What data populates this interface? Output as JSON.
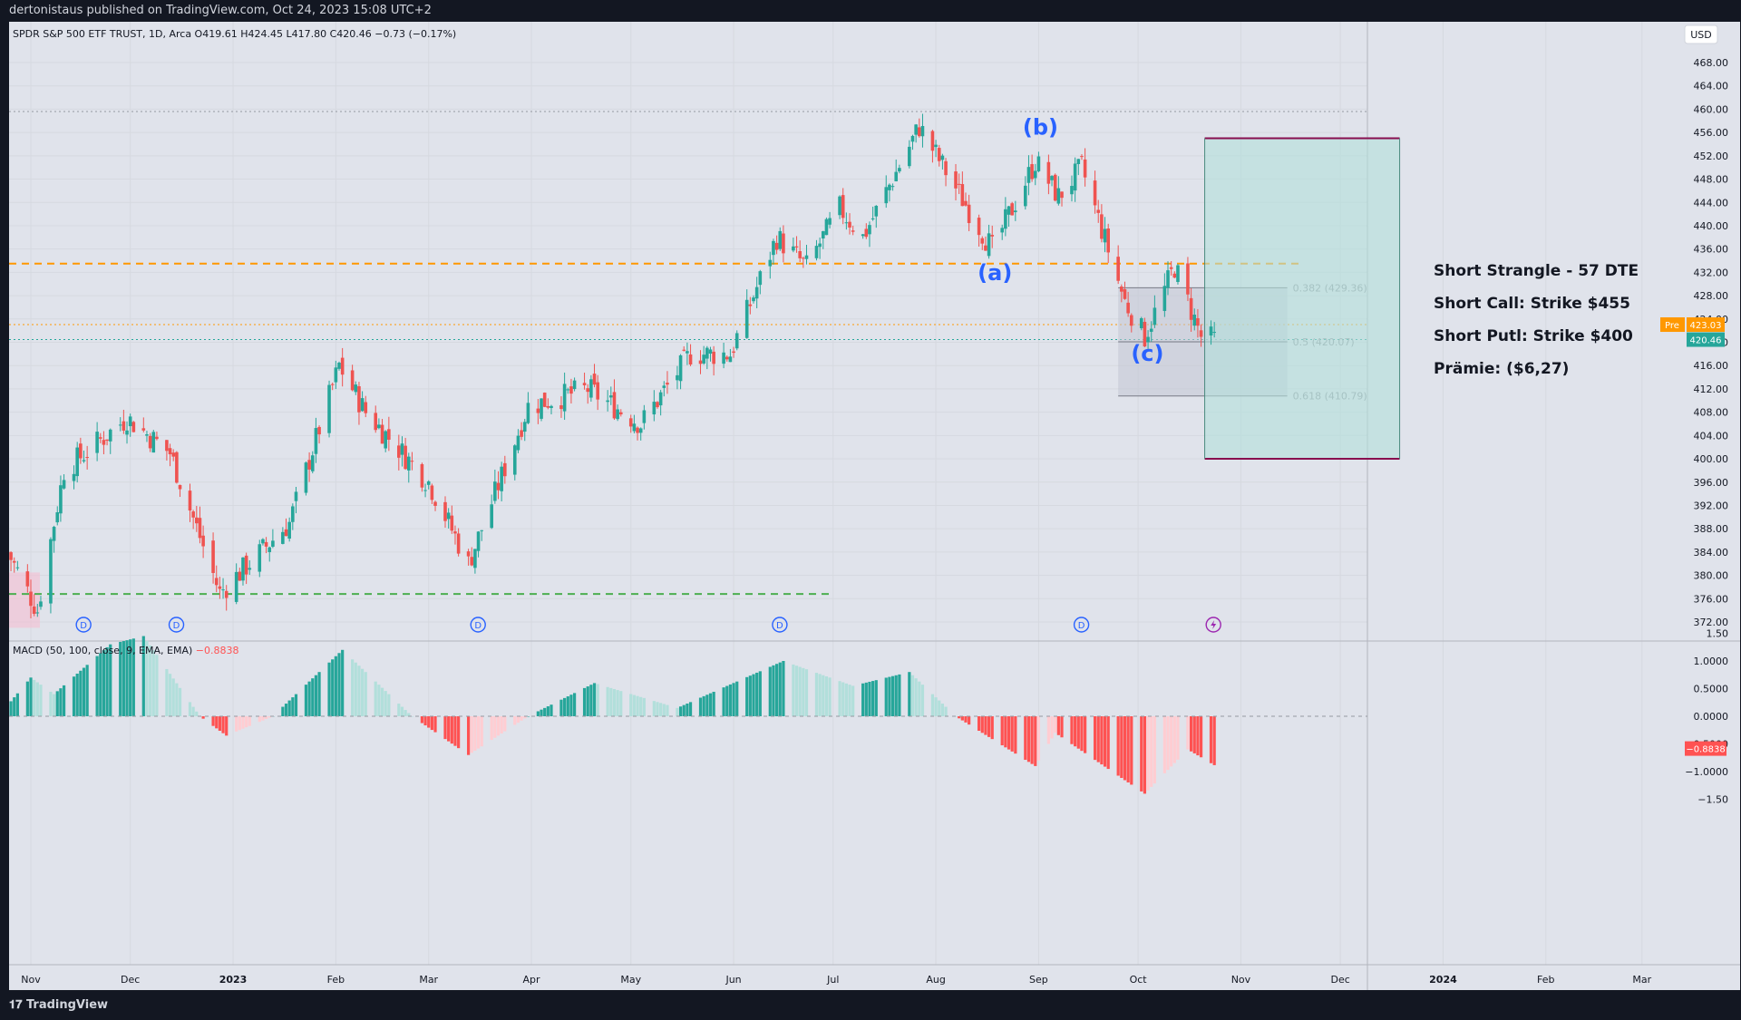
{
  "header": {
    "published": "dertonistaus published on TradingView.com, Oct 24, 2023 15:08 UTC+2",
    "ohlc": "SPDR S&P 500 ETF TRUST, 1D, Arca  O419.61  H424.45  L417.80  C420.46  −0.73 (−0.17%)",
    "currency": "USD"
  },
  "footer": {
    "brand": "TradingView"
  },
  "annotations": {
    "strangle_title": "Short Strangle - 57 DTE",
    "short_call": "Short Call: Strike $455",
    "short_put": "Short Putl: Strike $400",
    "premium": "Prämie: ($6,27)",
    "wave_a": "(a)",
    "wave_b": "(b)",
    "wave_c": "(c)",
    "fib_382": "0.382 (429.36)",
    "fib_5": "0.5 (420.07)",
    "fib_618": "0.618 (410.79)",
    "pre_label": "Pre",
    "pre_price": "423.03",
    "last_price": "420.46",
    "div_marker": "D"
  },
  "colors": {
    "up": "#26a69a",
    "down": "#ef5350",
    "macd_up_strong": "#26a69a",
    "macd_up_weak": "#b2dfdb",
    "macd_down_strong": "#ff5252",
    "macd_down_weak": "#ffcdd2",
    "strangle_box": "#b2dfdb",
    "orange_line": "#ff9800",
    "green_line": "#4caf50",
    "label_blue": "#2962ff"
  },
  "chart_data": [
    {
      "type": "candlestick",
      "series_name": "SPDR S&P 500 ETF TRUST",
      "y_axis": {
        "range": [
          369,
          470
        ],
        "ticks": [
          "372.00",
          "376.00",
          "380.00",
          "384.00",
          "388.00",
          "392.00",
          "396.00",
          "400.00",
          "404.00",
          "408.00",
          "412.00",
          "416.00",
          "420.00",
          "424.00",
          "428.00",
          "432.00",
          "436.00",
          "440.00",
          "444.00",
          "448.00",
          "452.00",
          "456.00",
          "460.00",
          "464.00",
          "468.00"
        ]
      },
      "x_axis": {
        "ticks": [
          "Nov",
          "Dec",
          "2023",
          "Feb",
          "Mar",
          "Apr",
          "May",
          "Jun",
          "Jul",
          "Aug",
          "Sep",
          "Oct",
          "Nov",
          "Dec",
          "2024",
          "Feb",
          "Mar"
        ]
      },
      "close_path": [
        {
          "date": "2022-10-25",
          "close": 384
        },
        {
          "date": "2022-11-03",
          "close": 374
        },
        {
          "date": "2022-11-11",
          "close": 398
        },
        {
          "date": "2022-11-30",
          "close": 407
        },
        {
          "date": "2022-12-13",
          "close": 401
        },
        {
          "date": "2022-12-28",
          "close": 377
        },
        {
          "date": "2023-01-18",
          "close": 389
        },
        {
          "date": "2023-02-02",
          "close": 416
        },
        {
          "date": "2023-02-10",
          "close": 408
        },
        {
          "date": "2023-03-01",
          "close": 396
        },
        {
          "date": "2023-03-13",
          "close": 382
        },
        {
          "date": "2023-03-31",
          "close": 409
        },
        {
          "date": "2023-04-18",
          "close": 412
        },
        {
          "date": "2023-05-04",
          "close": 406
        },
        {
          "date": "2023-05-19",
          "close": 418
        },
        {
          "date": "2023-05-31",
          "close": 418
        },
        {
          "date": "2023-06-14",
          "close": 438
        },
        {
          "date": "2023-06-23",
          "close": 433
        },
        {
          "date": "2023-07-03",
          "close": 443
        },
        {
          "date": "2023-07-10",
          "close": 438
        },
        {
          "date": "2023-07-27",
          "close": 457
        },
        {
          "date": "2023-08-18",
          "close": 436
        },
        {
          "date": "2023-08-31",
          "close": 451
        },
        {
          "date": "2023-09-07",
          "close": 445
        },
        {
          "date": "2023-09-14",
          "close": 450
        },
        {
          "date": "2023-09-27",
          "close": 427
        },
        {
          "date": "2023-10-03",
          "close": 421
        },
        {
          "date": "2023-10-12",
          "close": 433
        },
        {
          "date": "2023-10-20",
          "close": 421
        },
        {
          "date": "2023-10-24",
          "close": 420.46
        }
      ],
      "horizontal_levels": [
        {
          "price": 433.5,
          "style": "dashed",
          "color": "#ff9800"
        },
        {
          "price": 376.8,
          "style": "dashed",
          "color": "#4caf50"
        },
        {
          "price": 459.6,
          "style": "dotted",
          "color": "#9598a1"
        },
        {
          "price": 423.03,
          "style": "dotted",
          "color": "#ff9800"
        },
        {
          "price": 420.46,
          "style": "dotted",
          "color": "#26a69a"
        }
      ],
      "strangle_box": {
        "upper": 455,
        "lower": 400,
        "from": "2023-10-20",
        "to": "2023-12-15"
      },
      "fib_levels": [
        {
          "ratio": "0.382",
          "price": 429.36
        },
        {
          "ratio": "0.5",
          "price": 420.07
        },
        {
          "ratio": "0.618",
          "price": 410.79
        }
      ],
      "wave_labels": [
        {
          "label": "(a)",
          "date": "2023-08-18",
          "price": 432
        },
        {
          "label": "(b)",
          "date": "2023-08-31",
          "price": 457
        },
        {
          "label": "(c)",
          "date": "2023-10-03",
          "price": 418
        }
      ]
    },
    {
      "type": "bar",
      "title": "MACD (50, 100, close, 9, EMA, EMA)",
      "last_value": "−0.8838",
      "y_axis": {
        "range": [
          -1.7,
          1.7
        ],
        "ticks": [
          "1.50",
          "1.0000",
          "0.5000",
          "0.0000",
          "−0.5000",
          "−1.0000",
          "−1.50"
        ]
      },
      "histogram_path": [
        {
          "date": "2022-10-25",
          "value": 0.2
        },
        {
          "date": "2022-11-01",
          "value": 0.7
        },
        {
          "date": "2022-11-08",
          "value": 0.4
        },
        {
          "date": "2022-11-25",
          "value": 1.3
        },
        {
          "date": "2022-12-05",
          "value": 1.45
        },
        {
          "date": "2022-12-22",
          "value": 0.0
        },
        {
          "date": "2022-12-30",
          "value": -0.35
        },
        {
          "date": "2023-01-13",
          "value": 0.0
        },
        {
          "date": "2023-02-03",
          "value": 1.2
        },
        {
          "date": "2023-02-24",
          "value": 0.0
        },
        {
          "date": "2023-03-13",
          "value": -0.7
        },
        {
          "date": "2023-03-31",
          "value": 0.0
        },
        {
          "date": "2023-04-20",
          "value": 0.6
        },
        {
          "date": "2023-05-15",
          "value": 0.15
        },
        {
          "date": "2023-06-16",
          "value": 1.0
        },
        {
          "date": "2023-07-07",
          "value": 0.55
        },
        {
          "date": "2023-07-24",
          "value": 0.8
        },
        {
          "date": "2023-08-07",
          "value": 0.0
        },
        {
          "date": "2023-08-31",
          "value": -0.9
        },
        {
          "date": "2023-09-06",
          "value": -0.3
        },
        {
          "date": "2023-10-03",
          "value": -1.4
        },
        {
          "date": "2023-10-16",
          "value": -0.6
        },
        {
          "date": "2023-10-24",
          "value": -0.8838
        }
      ]
    }
  ]
}
